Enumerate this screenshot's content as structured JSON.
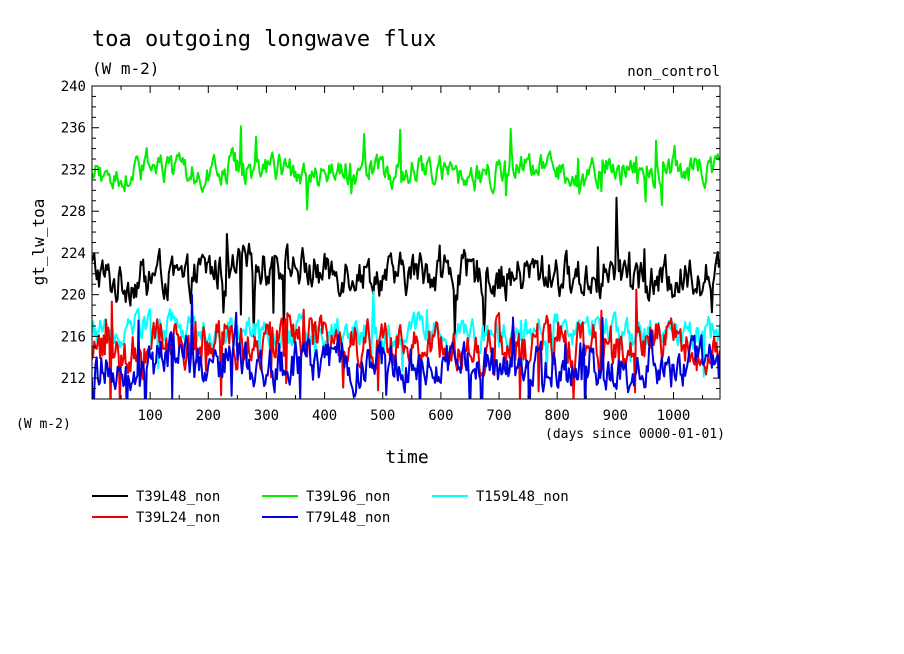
{
  "chart_data": {
    "type": "line",
    "title": "toa outgoing longwave flux",
    "subtitle": "(W m-2)",
    "run_label": "non_control",
    "ylabel": "gt_lw_toa",
    "yunit": "(W m-2)",
    "xlabel": "time",
    "xunit": "(days since 0000-01-01)",
    "xlim": [
      0,
      1080
    ],
    "ylim": [
      210,
      240
    ],
    "xticks": [
      100,
      200,
      300,
      400,
      500,
      600,
      700,
      800,
      900,
      1000
    ],
    "yticks": [
      212,
      216,
      220,
      224,
      228,
      232,
      236,
      240
    ],
    "grid": false,
    "legend_position": "bottom",
    "series": [
      {
        "name": "T39L48_non",
        "color": "#000000",
        "mean": 221.8,
        "amp": 1.6,
        "x": [
          0,
          40,
          80,
          120,
          160,
          200,
          240,
          280,
          320,
          360,
          400,
          440,
          480,
          520,
          560,
          600,
          640,
          680,
          720,
          760,
          800,
          840,
          880,
          920,
          960,
          1000,
          1040,
          1080
        ],
        "y": [
          222.5,
          221.0,
          221.5,
          222.0,
          221.0,
          222.5,
          222.0,
          222.8,
          223.0,
          222.5,
          222.0,
          222.5,
          222.0,
          221.5,
          222.3,
          222.5,
          221.8,
          222.0,
          221.5,
          222.2,
          222.0,
          221.5,
          222.0,
          222.5,
          221.0,
          221.5,
          222.0,
          221.5
        ]
      },
      {
        "name": "T39L96_non",
        "color": "#00ee00",
        "mean": 231.7,
        "amp": 1.1,
        "x": [
          0,
          40,
          80,
          120,
          160,
          200,
          240,
          280,
          320,
          360,
          400,
          440,
          480,
          520,
          560,
          600,
          640,
          680,
          720,
          760,
          800,
          840,
          880,
          920,
          960,
          1000,
          1040,
          1080
        ],
        "y": [
          231.5,
          231.0,
          231.8,
          232.0,
          231.5,
          231.8,
          232.3,
          231.5,
          232.0,
          231.8,
          231.5,
          232.0,
          231.8,
          231.5,
          232.0,
          231.8,
          231.0,
          231.5,
          232.0,
          231.8,
          232.0,
          231.5,
          231.8,
          232.0,
          231.5,
          231.8,
          232.0,
          232.0
        ]
      },
      {
        "name": "T159L48_non",
        "color": "#00ffff",
        "mean": 216.3,
        "amp": 1.2,
        "x": [
          0,
          40,
          80,
          120,
          160,
          200,
          240,
          280,
          320,
          360,
          400,
          440,
          480,
          520,
          560,
          600,
          640,
          680,
          720,
          760,
          800,
          840,
          880,
          920,
          960,
          1000,
          1040,
          1080
        ],
        "y": [
          216.5,
          216.0,
          216.8,
          217.0,
          216.5,
          216.0,
          216.3,
          216.8,
          216.0,
          216.5,
          216.2,
          216.8,
          216.5,
          216.0,
          216.8,
          216.3,
          216.5,
          216.0,
          216.2,
          216.8,
          216.5,
          216.0,
          216.8,
          216.2,
          216.5,
          216.0,
          216.3,
          216.5
        ]
      },
      {
        "name": "T39L24_non",
        "color": "#ee0000",
        "mean": 215.3,
        "amp": 1.8,
        "x": [
          0,
          40,
          80,
          120,
          160,
          200,
          240,
          280,
          320,
          360,
          400,
          440,
          480,
          520,
          560,
          600,
          640,
          680,
          720,
          760,
          800,
          840,
          880,
          920,
          960,
          1000,
          1040,
          1080
        ],
        "y": [
          214.5,
          215.0,
          214.0,
          215.5,
          215.0,
          216.0,
          215.5,
          215.0,
          215.8,
          216.0,
          215.5,
          215.0,
          214.8,
          215.5,
          216.0,
          215.2,
          215.0,
          214.5,
          215.0,
          215.5,
          215.8,
          215.0,
          214.5,
          215.0,
          215.8,
          215.0,
          214.8,
          214.5
        ]
      },
      {
        "name": "T79L48_non",
        "color": "#0000dd",
        "mean": 213.4,
        "amp": 1.7,
        "x": [
          0,
          40,
          80,
          120,
          160,
          200,
          240,
          280,
          320,
          360,
          400,
          440,
          480,
          520,
          560,
          600,
          640,
          680,
          720,
          760,
          800,
          840,
          880,
          920,
          960,
          1000,
          1040,
          1080
        ],
        "y": [
          213.0,
          213.5,
          213.0,
          214.0,
          213.5,
          213.0,
          214.0,
          213.2,
          213.0,
          213.5,
          213.8,
          213.0,
          213.5,
          213.8,
          213.0,
          213.5,
          212.8,
          213.0,
          213.5,
          213.2,
          213.0,
          214.0,
          213.5,
          213.0,
          213.8,
          213.0,
          213.5,
          213.0
        ]
      }
    ]
  }
}
